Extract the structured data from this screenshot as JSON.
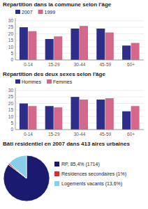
{
  "chart_data": [
    {
      "type": "bar",
      "title": "Répartition dans la commune selon l'âge",
      "categories": [
        "0-14",
        "15-29",
        "30-44",
        "45-59",
        "60+"
      ],
      "series": [
        {
          "name": "2007",
          "color": "#2E2E8A",
          "values": [
            25,
            16,
            24,
            24,
            11
          ]
        },
        {
          "name": "1999",
          "color": "#D4688A",
          "values": [
            22,
            18,
            26,
            21,
            13
          ]
        }
      ],
      "ylim": [
        0,
        32
      ],
      "yticks": [
        0,
        5,
        10,
        15,
        20,
        25,
        30
      ],
      "legend": "upper left"
    },
    {
      "type": "bar",
      "title": "Répartition des deux sexes selon l'âge",
      "categories": [
        "0-14",
        "15-29",
        "30-44",
        "45-59",
        "60+"
      ],
      "series": [
        {
          "name": "Hommes",
          "color": "#2E2E8A",
          "values": [
            20,
            18,
            25,
            23,
            14
          ]
        },
        {
          "name": "Femmes",
          "color": "#D4688A",
          "values": [
            18,
            17,
            23,
            24,
            18
          ]
        }
      ],
      "ylim": [
        0,
        32
      ],
      "yticks": [
        0,
        5,
        10,
        15,
        20,
        25,
        30
      ],
      "legend": "upper left"
    },
    {
      "type": "pie",
      "title": "Bâti résidentiel en 2007 dans 413 aires urbaines",
      "categories": [
        "RP, 85,4% (1714)",
        "Résidences secondaires (1%)",
        "Logements vacants (13,6%)"
      ],
      "values": [
        85.4,
        1.0,
        13.6
      ],
      "colors": [
        "#1a1a6e",
        "#cc3333",
        "#87CEEB"
      ]
    }
  ]
}
